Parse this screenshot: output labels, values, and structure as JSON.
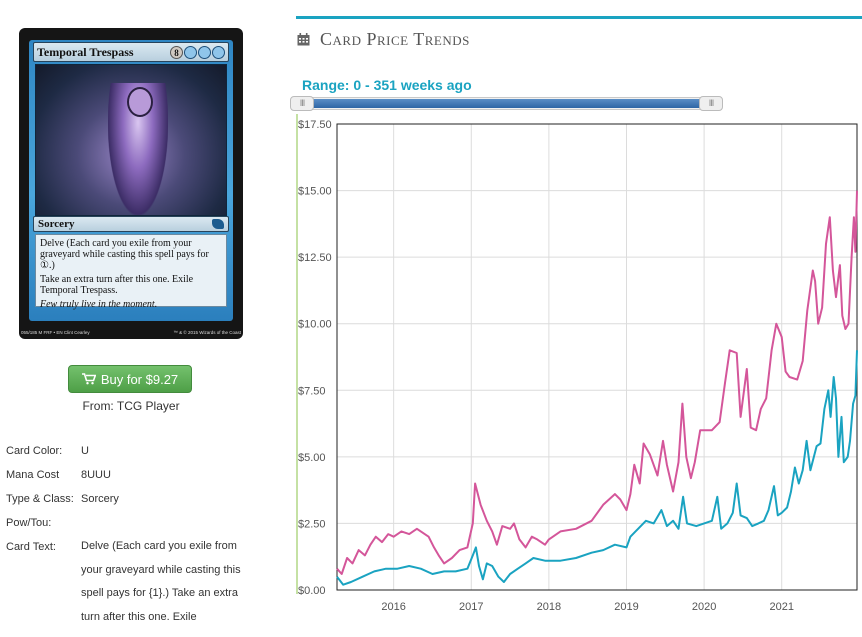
{
  "card": {
    "name": "Temporal Trespass",
    "mana_symbols": [
      "8",
      "U",
      "U",
      "U"
    ],
    "type_line": "Sorcery",
    "rules_text_1": "Delve (Each card you exile from your graveyard while casting this spell pays for ①.)",
    "rules_text_2": "Take an extra turn after this one. Exile Temporal Trespass.",
    "flavor_text": "Few truly live in the moment.",
    "collector_info": "055/185 M",
    "set_info": "FRF • EN",
    "artist": "Clint Cearley",
    "copyright": "™ & © 2015 Wizards of the Coast"
  },
  "buy": {
    "label": "Buy for $9.27",
    "source": "From: TCG Player"
  },
  "properties": [
    {
      "label": "Card Color:",
      "value": "U"
    },
    {
      "label": "Mana Cost",
      "value": "8UUU"
    },
    {
      "label": "Type & Class:",
      "value": "Sorcery"
    },
    {
      "label": "Pow/Tou:",
      "value": ""
    },
    {
      "label": "Card Text:",
      "value": "Delve (Each card you exile from your graveyard while casting this spell pays for {1}.) Take an extra turn after this one. Exile"
    }
  ],
  "trends": {
    "title": "Card Price Trends",
    "range_label": "Range: 0 - 351 weeks ago",
    "slider_handle_glyph": "III"
  },
  "colors": {
    "accent": "#1aa3c1",
    "series_pink": "#d4569a",
    "series_teal": "#1aa3c1",
    "buy_green": "#5cb85c"
  },
  "chart_data": {
    "type": "line",
    "x_ticks": [
      "2016",
      "2017",
      "2018",
      "2019",
      "2020",
      "2021"
    ],
    "xlim": [
      2015.27,
      2021.97
    ],
    "y_ticks": [
      "$0.00",
      "$2.50",
      "$5.00",
      "$7.50",
      "$10.00",
      "$12.50",
      "$15.00",
      "$17.50"
    ],
    "ylim": [
      0,
      17.5
    ],
    "grid": true,
    "series": [
      {
        "color": "#d4569a",
        "points": [
          [
            2015.27,
            0.8
          ],
          [
            2015.33,
            0.6
          ],
          [
            2015.4,
            1.2
          ],
          [
            2015.47,
            1.0
          ],
          [
            2015.55,
            1.5
          ],
          [
            2015.63,
            1.3
          ],
          [
            2015.7,
            1.7
          ],
          [
            2015.77,
            2.0
          ],
          [
            2015.85,
            1.8
          ],
          [
            2015.93,
            2.1
          ],
          [
            2016.0,
            2.0
          ],
          [
            2016.1,
            2.2
          ],
          [
            2016.2,
            2.1
          ],
          [
            2016.3,
            2.3
          ],
          [
            2016.45,
            2.0
          ],
          [
            2016.52,
            1.6
          ],
          [
            2016.58,
            1.3
          ],
          [
            2016.65,
            1.0
          ],
          [
            2016.75,
            1.2
          ],
          [
            2016.85,
            1.5
          ],
          [
            2016.95,
            1.6
          ],
          [
            2017.02,
            2.5
          ],
          [
            2017.05,
            4.0
          ],
          [
            2017.12,
            3.2
          ],
          [
            2017.2,
            2.6
          ],
          [
            2017.27,
            2.2
          ],
          [
            2017.33,
            1.7
          ],
          [
            2017.4,
            2.4
          ],
          [
            2017.5,
            2.3
          ],
          [
            2017.55,
            2.5
          ],
          [
            2017.62,
            1.9
          ],
          [
            2017.7,
            1.6
          ],
          [
            2017.78,
            2.0
          ],
          [
            2017.85,
            1.9
          ],
          [
            2017.95,
            1.7
          ],
          [
            2018.0,
            1.9
          ],
          [
            2018.15,
            2.2
          ],
          [
            2018.35,
            2.3
          ],
          [
            2018.55,
            2.6
          ],
          [
            2018.7,
            3.2
          ],
          [
            2018.85,
            3.6
          ],
          [
            2018.92,
            3.4
          ],
          [
            2019.0,
            3.0
          ],
          [
            2019.05,
            3.6
          ],
          [
            2019.1,
            4.7
          ],
          [
            2019.17,
            4.0
          ],
          [
            2019.22,
            5.5
          ],
          [
            2019.3,
            5.1
          ],
          [
            2019.4,
            4.3
          ],
          [
            2019.47,
            5.6
          ],
          [
            2019.52,
            4.7
          ],
          [
            2019.6,
            3.7
          ],
          [
            2019.67,
            4.8
          ],
          [
            2019.72,
            7.0
          ],
          [
            2019.77,
            5.0
          ],
          [
            2019.83,
            4.2
          ],
          [
            2019.88,
            4.8
          ],
          [
            2019.95,
            6.0
          ],
          [
            2020.1,
            6.0
          ],
          [
            2020.2,
            6.3
          ],
          [
            2020.27,
            7.8
          ],
          [
            2020.33,
            9.0
          ],
          [
            2020.42,
            8.9
          ],
          [
            2020.47,
            6.5
          ],
          [
            2020.55,
            8.3
          ],
          [
            2020.6,
            6.1
          ],
          [
            2020.67,
            6.0
          ],
          [
            2020.73,
            6.8
          ],
          [
            2020.8,
            7.2
          ],
          [
            2020.87,
            9.0
          ],
          [
            2020.93,
            10.0
          ],
          [
            2021.0,
            9.5
          ],
          [
            2021.05,
            8.2
          ],
          [
            2021.1,
            8.0
          ],
          [
            2021.2,
            7.9
          ],
          [
            2021.27,
            8.6
          ],
          [
            2021.33,
            10.5
          ],
          [
            2021.4,
            12.0
          ],
          [
            2021.43,
            11.6
          ],
          [
            2021.47,
            10.0
          ],
          [
            2021.52,
            10.6
          ],
          [
            2021.57,
            13.0
          ],
          [
            2021.62,
            14.0
          ],
          [
            2021.66,
            12.0
          ],
          [
            2021.7,
            11.0
          ],
          [
            2021.75,
            12.2
          ],
          [
            2021.78,
            10.3
          ],
          [
            2021.82,
            9.8
          ],
          [
            2021.86,
            10.0
          ],
          [
            2021.9,
            12.5
          ],
          [
            2021.93,
            14.0
          ],
          [
            2021.95,
            12.7
          ],
          [
            2021.97,
            15.0
          ]
        ]
      },
      {
        "color": "#1aa3c1",
        "points": [
          [
            2015.27,
            0.5
          ],
          [
            2015.35,
            0.2
          ],
          [
            2015.45,
            0.3
          ],
          [
            2015.6,
            0.5
          ],
          [
            2015.75,
            0.7
          ],
          [
            2015.9,
            0.8
          ],
          [
            2016.05,
            0.8
          ],
          [
            2016.2,
            0.9
          ],
          [
            2016.35,
            0.8
          ],
          [
            2016.5,
            0.6
          ],
          [
            2016.65,
            0.7
          ],
          [
            2016.8,
            0.7
          ],
          [
            2016.95,
            0.8
          ],
          [
            2017.02,
            1.3
          ],
          [
            2017.06,
            1.6
          ],
          [
            2017.1,
            0.9
          ],
          [
            2017.15,
            0.4
          ],
          [
            2017.2,
            1.0
          ],
          [
            2017.27,
            0.9
          ],
          [
            2017.35,
            0.5
          ],
          [
            2017.42,
            0.3
          ],
          [
            2017.5,
            0.6
          ],
          [
            2017.6,
            0.8
          ],
          [
            2017.7,
            1.0
          ],
          [
            2017.8,
            1.2
          ],
          [
            2017.95,
            1.1
          ],
          [
            2018.15,
            1.1
          ],
          [
            2018.35,
            1.2
          ],
          [
            2018.55,
            1.4
          ],
          [
            2018.7,
            1.5
          ],
          [
            2018.85,
            1.7
          ],
          [
            2019.0,
            1.6
          ],
          [
            2019.05,
            2.0
          ],
          [
            2019.15,
            2.3
          ],
          [
            2019.25,
            2.6
          ],
          [
            2019.35,
            2.5
          ],
          [
            2019.45,
            3.0
          ],
          [
            2019.52,
            2.4
          ],
          [
            2019.6,
            2.6
          ],
          [
            2019.67,
            2.3
          ],
          [
            2019.73,
            3.5
          ],
          [
            2019.78,
            2.5
          ],
          [
            2019.9,
            2.4
          ],
          [
            2020.0,
            2.5
          ],
          [
            2020.1,
            2.6
          ],
          [
            2020.17,
            3.5
          ],
          [
            2020.22,
            2.3
          ],
          [
            2020.3,
            2.5
          ],
          [
            2020.37,
            2.9
          ],
          [
            2020.42,
            4.0
          ],
          [
            2020.47,
            2.8
          ],
          [
            2020.55,
            2.7
          ],
          [
            2020.62,
            2.4
          ],
          [
            2020.7,
            2.5
          ],
          [
            2020.77,
            2.6
          ],
          [
            2020.83,
            3.0
          ],
          [
            2020.9,
            3.9
          ],
          [
            2020.95,
            2.8
          ],
          [
            2021.0,
            2.9
          ],
          [
            2021.07,
            3.1
          ],
          [
            2021.12,
            3.7
          ],
          [
            2021.17,
            4.6
          ],
          [
            2021.22,
            4.0
          ],
          [
            2021.27,
            4.5
          ],
          [
            2021.32,
            5.6
          ],
          [
            2021.37,
            4.5
          ],
          [
            2021.45,
            5.4
          ],
          [
            2021.5,
            5.5
          ],
          [
            2021.55,
            6.8
          ],
          [
            2021.6,
            7.5
          ],
          [
            2021.63,
            6.5
          ],
          [
            2021.67,
            8.0
          ],
          [
            2021.7,
            7.2
          ],
          [
            2021.73,
            5.0
          ],
          [
            2021.77,
            6.5
          ],
          [
            2021.8,
            4.8
          ],
          [
            2021.85,
            5.0
          ],
          [
            2021.88,
            5.6
          ],
          [
            2021.92,
            7.0
          ],
          [
            2021.95,
            7.3
          ],
          [
            2021.97,
            9.0
          ]
        ]
      }
    ]
  }
}
